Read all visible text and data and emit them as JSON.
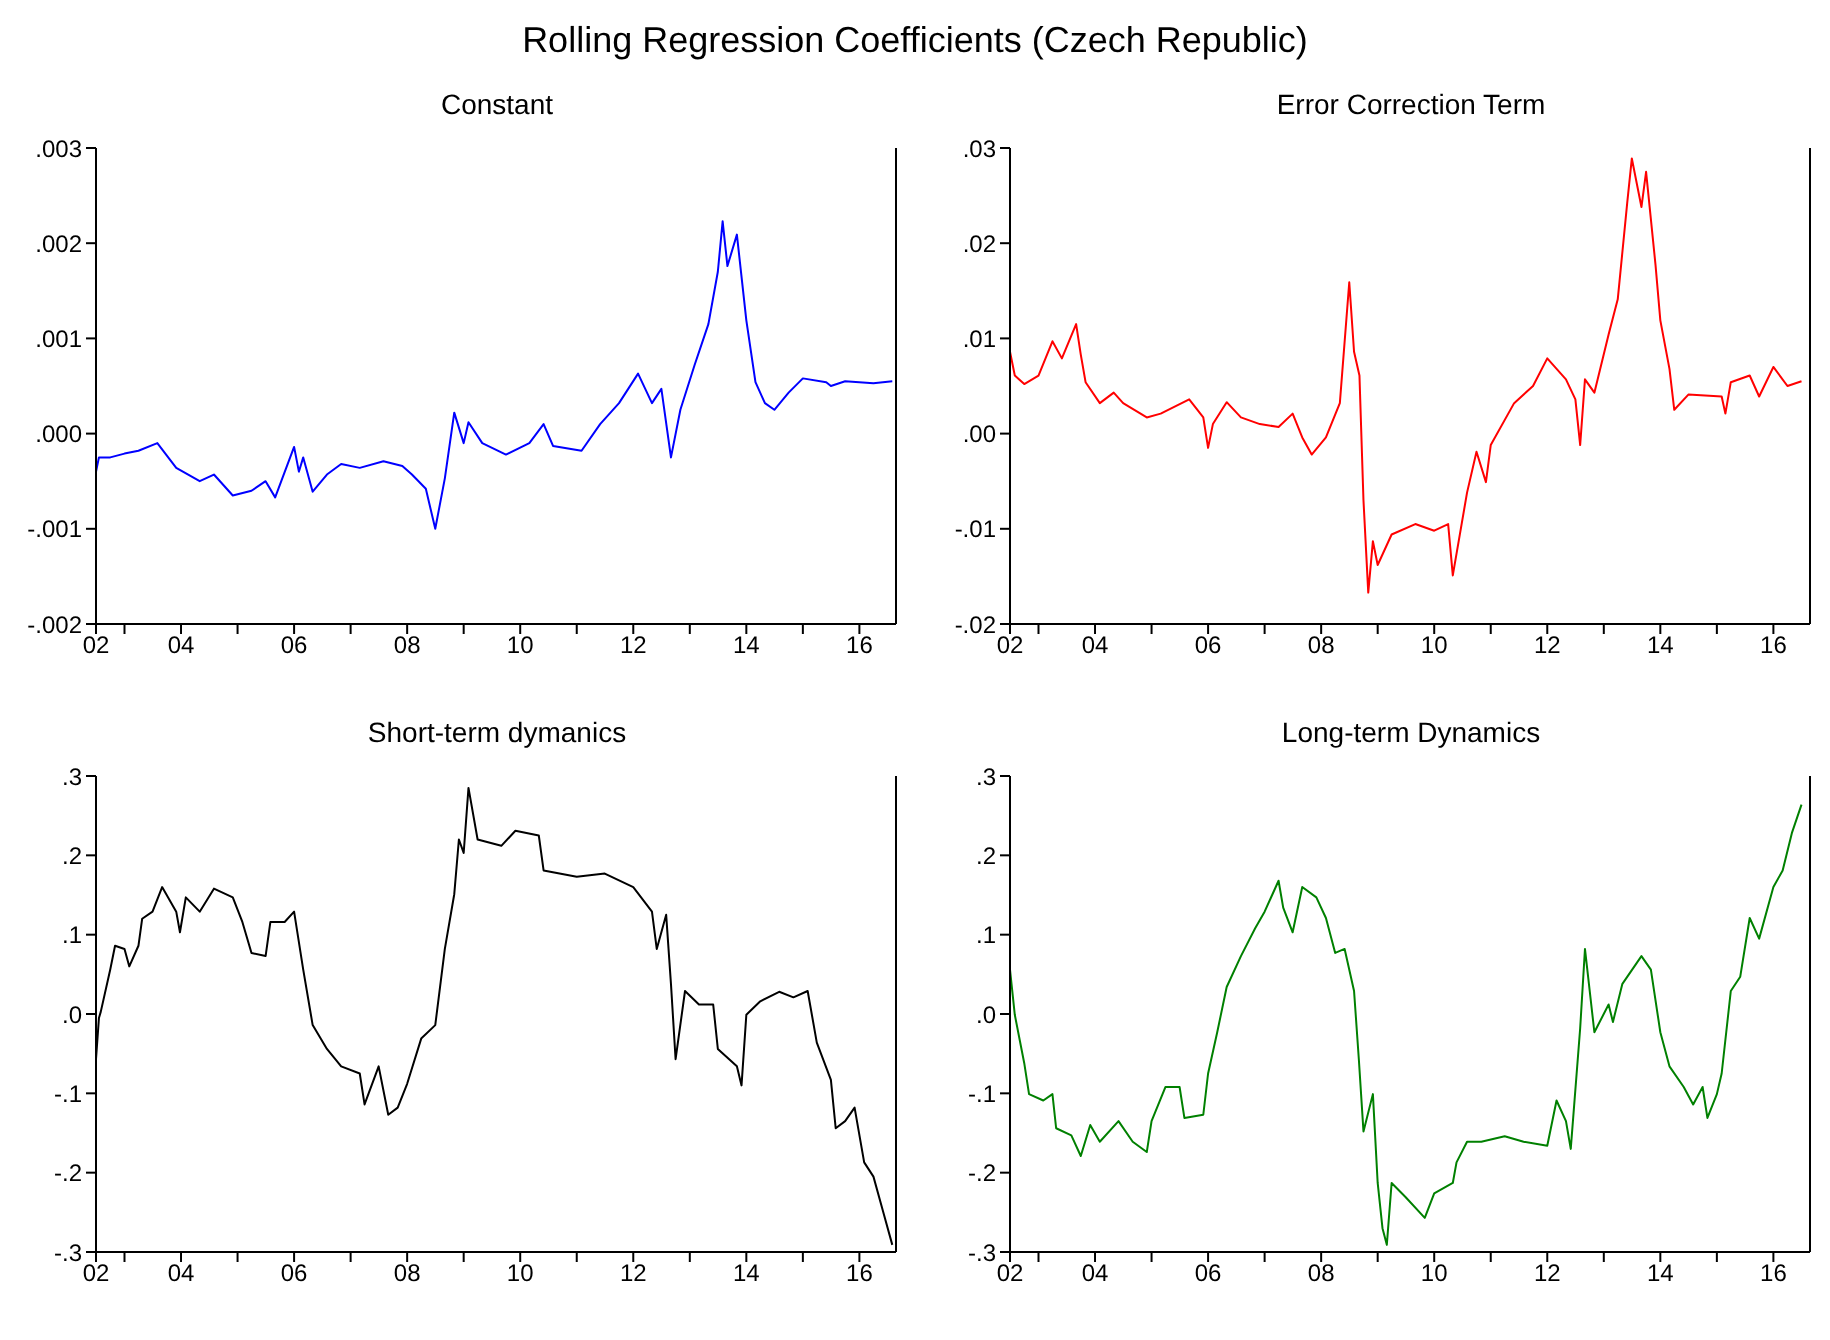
{
  "chart_data": [
    {
      "type": "line",
      "title": "Rolling Regression Coefficients (Czech Republic)",
      "subtitle": "Constant",
      "series": [
        {
          "color": "#0000ff",
          "x": [
            "2002-07-01",
            "2002-07-20",
            "2002-10",
            "2003-01",
            "2003-04",
            "2003-08",
            "2003-12",
            "2004-05",
            "2004-08",
            "2004-12",
            "2005-04",
            "2005-07",
            "2005-09",
            "2006-01",
            "2006-02",
            "2006-03",
            "2006-05",
            "2006-08",
            "2006-11",
            "2007-03",
            "2007-08",
            "2007-12",
            "2008-02",
            "2008-05",
            "2008-07",
            "2008-09",
            "2008-11",
            "2009-01",
            "2009-02",
            "2009-05",
            "2009-10",
            "2010-03",
            "2010-06",
            "2010-08",
            "2011-02",
            "2011-06",
            "2011-10",
            "2012-02",
            "2012-05",
            "2012-07",
            "2012-09",
            "2012-11",
            "2013-02",
            "2013-05",
            "2013-07",
            "2013-08",
            "2013-09",
            "2013-11",
            "2014-01",
            "2014-03",
            "2014-05",
            "2014-07",
            "2014-10",
            "2015-01",
            "2015-06",
            "2015-07",
            "2015-10",
            "2016-04",
            "2016-08"
          ],
          "values": [
            -0.0004,
            -0.00025,
            -0.00025,
            -0.00021,
            -0.00018,
            -0.0001,
            -0.00036,
            -0.0005,
            -0.00043,
            -0.00065,
            -0.0006,
            -0.0005,
            -0.00067,
            -0.00014,
            -0.0004,
            -0.00025,
            -0.00061,
            -0.00043,
            -0.00032,
            -0.00036,
            -0.00029,
            -0.00034,
            -0.00043,
            -0.00058,
            -0.001,
            -0.00047,
            0.00022,
            -0.0001,
            0.00012,
            -0.0001,
            -0.00022,
            -0.0001,
            0.0001,
            -0.00013,
            -0.00018,
            0.0001,
            0.00032,
            0.00063,
            0.00032,
            0.00047,
            -0.00025,
            0.00025,
            0.00072,
            0.00115,
            0.0017,
            0.00223,
            0.00176,
            0.00209,
            0.00119,
            0.00054,
            0.00032,
            0.00025,
            0.00043,
            0.00058,
            0.00054,
            0.0005,
            0.00055,
            0.00053,
            0.00055
          ]
        }
      ],
      "xlim": [
        "2002-07-01",
        "2016-08-25"
      ],
      "xticks": [
        {
          "value": "2002-07-01",
          "label": "02"
        },
        {
          "value": "2003",
          "label": null
        },
        {
          "value": "2004",
          "label": "04"
        },
        {
          "value": "2005",
          "label": null
        },
        {
          "value": "2006",
          "label": "06"
        },
        {
          "value": "2007",
          "label": null
        },
        {
          "value": "2008",
          "label": "08"
        },
        {
          "value": "2009",
          "label": null
        },
        {
          "value": "2010",
          "label": "10"
        },
        {
          "value": "2011",
          "label": null
        },
        {
          "value": "2012",
          "label": "12"
        },
        {
          "value": "2013",
          "label": null
        },
        {
          "value": "2014",
          "label": "14"
        },
        {
          "value": "2015",
          "label": null
        },
        {
          "value": "2016",
          "label": "16"
        }
      ],
      "ylim": [
        -0.002,
        0.003
      ],
      "yticks": [
        {
          "value": -0.002,
          "label": "-.002"
        },
        {
          "value": -0.001,
          "label": "-.001"
        },
        {
          "value": 0,
          "label": ".000"
        },
        {
          "value": 0.001,
          "label": ".001"
        },
        {
          "value": 0.002,
          "label": ".002"
        },
        {
          "value": 0.003,
          "label": ".003"
        }
      ]
    },
    {
      "type": "line",
      "subtitle": "Error Correction Term",
      "series": [
        {
          "color": "#ff0000",
          "x": [
            "2002-07",
            "2002-08",
            "2002-10",
            "2003-01",
            "2003-04",
            "2003-06",
            "2003-09",
            "2003-10",
            "2003-11",
            "2004-02",
            "2004-05",
            "2004-07",
            "2004-12",
            "2005-03",
            "2005-09",
            "2005-12",
            "2006-01",
            "2006-02",
            "2006-05",
            "2006-08",
            "2006-12",
            "2007-04",
            "2007-07",
            "2007-09",
            "2007-11",
            "2008-02",
            "2008-05",
            "2008-07",
            "2008-08",
            "2008-09-05",
            "2008-09-28",
            "2008-10",
            "2008-11",
            "2008-12",
            "2009-01",
            "2009-04",
            "2009-09",
            "2010-01",
            "2010-04",
            "2010-05",
            "2010-08",
            "2010-10",
            "2010-12",
            "2011-01",
            "2011-06",
            "2011-10",
            "2012-01",
            "2012-05",
            "2012-07",
            "2012-08",
            "2012-09",
            "2012-11",
            "2013-02",
            "2013-04",
            "2013-06",
            "2013-07",
            "2013-09",
            "2013-10",
            "2013-12",
            "2014-01",
            "2014-03",
            "2014-04",
            "2014-07",
            "2015-02-01",
            "2015-02-25",
            "2015-04",
            "2015-08",
            "2015-10",
            "2016-01",
            "2016-04",
            "2016-07"
          ],
          "values": [
            0.0086,
            0.0061,
            0.0052,
            0.0061,
            0.0097,
            0.0079,
            0.0115,
            0.0083,
            0.0054,
            0.0032,
            0.0043,
            0.0032,
            0.0017,
            0.0021,
            0.0036,
            0.0017,
            -0.0015,
            0.001,
            0.0033,
            0.0017,
            0.001,
            0.0007,
            0.0021,
            -0.0004,
            -0.0022,
            -0.0004,
            0.0032,
            0.0159,
            0.0086,
            0.0061,
            -0.0055,
            -0.007,
            -0.0167,
            -0.0113,
            -0.0138,
            -0.0106,
            -0.0095,
            -0.0102,
            -0.0095,
            -0.0149,
            -0.0062,
            -0.0019,
            -0.0051,
            -0.0012,
            0.0032,
            0.005,
            0.0079,
            0.0057,
            0.0036,
            -0.0012,
            0.0057,
            0.0043,
            0.0104,
            0.0141,
            0.0242,
            0.0289,
            0.0238,
            0.0275,
            0.0177,
            0.0119,
            0.0068,
            0.0025,
            0.0041,
            0.0039,
            0.0021,
            0.0054,
            0.0061,
            0.0039,
            0.007,
            0.005,
            0.0055
          ]
        }
      ],
      "xlim": [
        "2002-07-01",
        "2016-08-25"
      ],
      "xticks": [
        {
          "value": "2002-07-01",
          "label": "02"
        },
        {
          "value": "2003",
          "label": null
        },
        {
          "value": "2004",
          "label": "04"
        },
        {
          "value": "2005",
          "label": null
        },
        {
          "value": "2006",
          "label": "06"
        },
        {
          "value": "2007",
          "label": null
        },
        {
          "value": "2008",
          "label": "08"
        },
        {
          "value": "2009",
          "label": null
        },
        {
          "value": "2010",
          "label": "10"
        },
        {
          "value": "2011",
          "label": null
        },
        {
          "value": "2012",
          "label": "12"
        },
        {
          "value": "2013",
          "label": null
        },
        {
          "value": "2014",
          "label": "14"
        },
        {
          "value": "2015",
          "label": null
        },
        {
          "value": "2016",
          "label": "16"
        }
      ],
      "ylim": [
        -0.02,
        0.03
      ],
      "yticks": [
        {
          "value": -0.02,
          "label": "-.02"
        },
        {
          "value": -0.01,
          "label": "-.01"
        },
        {
          "value": 0,
          "label": ".00"
        },
        {
          "value": 0.01,
          "label": ".01"
        },
        {
          "value": 0.02,
          "label": ".02"
        },
        {
          "value": 0.03,
          "label": ".03"
        }
      ]
    },
    {
      "type": "line",
      "subtitle": "Short-term dymanics",
      "series": [
        {
          "color": "#000000",
          "x": [
            "2002-07-01",
            "2002-07-20",
            "2002-08",
            "2002-10",
            "2002-11",
            "2003-01",
            "2003-02",
            "2003-04-01",
            "2003-04-25",
            "2003-07",
            "2003-09",
            "2003-12-01",
            "2003-12-25",
            "2004-02",
            "2004-05",
            "2004-08",
            "2004-12",
            "2005-02",
            "2005-04",
            "2005-07",
            "2005-08",
            "2005-11",
            "2006-01",
            "2006-03",
            "2006-05",
            "2006-08",
            "2006-11",
            "2007-03",
            "2007-04",
            "2007-07",
            "2007-09",
            "2007-11",
            "2008-01",
            "2008-04",
            "2008-07",
            "2008-09",
            "2008-11",
            "2008-12",
            "2009-01",
            "2009-02",
            "2009-04",
            "2009-09",
            "2009-12",
            "2010-05",
            "2010-06",
            "2011-01",
            "2011-07",
            "2012-01",
            "2012-05",
            "2012-06",
            "2012-08",
            "2012-09",
            "2012-10",
            "2012-12",
            "2013-03",
            "2013-06",
            "2013-07",
            "2013-11",
            "2013-12",
            "2014-01",
            "2014-04",
            "2014-08",
            "2014-11",
            "2015-02",
            "2015-04",
            "2015-07",
            "2015-08",
            "2015-10",
            "2015-12",
            "2016-02",
            "2016-04",
            "2016-06",
            "2016-08"
          ],
          "values": [
            -0.057,
            -0.005,
            0.003,
            0.056,
            0.086,
            0.082,
            0.06,
            0.086,
            0.12,
            0.129,
            0.16,
            0.129,
            0.103,
            0.147,
            0.129,
            0.158,
            0.147,
            0.116,
            0.077,
            0.073,
            0.116,
            0.116,
            0.129,
            0.056,
            -0.014,
            -0.044,
            -0.066,
            -0.075,
            -0.114,
            -0.066,
            -0.127,
            -0.118,
            -0.088,
            -0.031,
            -0.014,
            0.082,
            0.151,
            0.22,
            0.203,
            0.285,
            0.22,
            0.212,
            0.231,
            0.225,
            0.181,
            0.173,
            0.177,
            0.16,
            0.129,
            0.082,
            0.125,
            0.038,
            -0.057,
            0.029,
            0.012,
            0.012,
            -0.044,
            -0.066,
            -0.09,
            -0.001,
            0.016,
            0.028,
            0.021,
            0.029,
            -0.036,
            -0.083,
            -0.144,
            -0.135,
            -0.118,
            -0.187,
            -0.205,
            -0.248,
            -0.291
          ]
        }
      ],
      "xlim": [
        "2002-07-01",
        "2016-08-25"
      ],
      "xticks": [
        {
          "value": "2002-07-01",
          "label": "02"
        },
        {
          "value": "2003",
          "label": null
        },
        {
          "value": "2004",
          "label": "04"
        },
        {
          "value": "2005",
          "label": null
        },
        {
          "value": "2006",
          "label": "06"
        },
        {
          "value": "2007",
          "label": null
        },
        {
          "value": "2008",
          "label": "08"
        },
        {
          "value": "2009",
          "label": null
        },
        {
          "value": "2010",
          "label": "10"
        },
        {
          "value": "2011",
          "label": null
        },
        {
          "value": "2012",
          "label": "12"
        },
        {
          "value": "2013",
          "label": null
        },
        {
          "value": "2014",
          "label": "14"
        },
        {
          "value": "2015",
          "label": null
        },
        {
          "value": "2016",
          "label": "16"
        }
      ],
      "ylim": [
        -0.3,
        0.3
      ],
      "yticks": [
        {
          "value": -0.3,
          "label": "-.3"
        },
        {
          "value": -0.2,
          "label": "-.2"
        },
        {
          "value": -0.1,
          "label": "-.1"
        },
        {
          "value": 0,
          "label": ".0"
        },
        {
          "value": 0.1,
          "label": ".1"
        },
        {
          "value": 0.2,
          "label": ".2"
        },
        {
          "value": 0.3,
          "label": ".3"
        }
      ]
    },
    {
      "type": "line",
      "subtitle": "Long-term Dynamics",
      "series": [
        {
          "color": "#008000",
          "x": [
            "2002-07",
            "2002-08",
            "2002-10",
            "2002-11",
            "2003-02",
            "2003-04-01",
            "2003-04-25",
            "2003-08",
            "2003-10",
            "2003-12",
            "2004-02",
            "2004-06",
            "2004-09",
            "2004-12",
            "2005-01",
            "2005-04",
            "2005-07",
            "2005-08",
            "2005-12",
            "2006-01",
            "2006-03",
            "2006-05",
            "2006-08",
            "2006-11",
            "2007-01",
            "2007-04",
            "2007-05",
            "2007-07",
            "2007-09",
            "2007-12",
            "2008-02",
            "2008-04",
            "2008-06",
            "2008-08",
            "2008-09",
            "2008-10",
            "2008-12",
            "2009-01",
            "2009-02",
            "2009-03",
            "2009-04",
            "2009-07",
            "2009-11",
            "2010-01",
            "2010-05-01",
            "2010-05-25",
            "2010-08",
            "2010-11",
            "2011-04",
            "2011-08",
            "2012-01",
            "2012-03",
            "2012-05",
            "2012-06",
            "2012-08",
            "2012-09",
            "2012-11",
            "2013-02",
            "2013-03",
            "2013-05",
            "2013-09",
            "2013-11",
            "2014-01",
            "2014-03",
            "2014-06",
            "2014-08",
            "2014-10",
            "2014-11",
            "2015-01",
            "2015-02",
            "2015-04",
            "2015-06",
            "2015-08",
            "2015-10",
            "2016-01",
            "2016-03",
            "2016-05",
            "2016-07"
          ],
          "values": [
            0.056,
            -0.001,
            -0.062,
            -0.101,
            -0.109,
            -0.101,
            -0.144,
            -0.153,
            -0.179,
            -0.14,
            -0.161,
            -0.135,
            -0.161,
            -0.174,
            -0.135,
            -0.092,
            -0.092,
            -0.131,
            -0.127,
            -0.075,
            -0.023,
            0.034,
            0.073,
            0.108,
            0.129,
            0.168,
            0.134,
            0.103,
            0.16,
            0.147,
            0.121,
            0.077,
            0.082,
            0.029,
            -0.057,
            -0.148,
            -0.101,
            -0.213,
            -0.27,
            -0.291,
            -0.213,
            -0.231,
            -0.257,
            -0.226,
            -0.213,
            -0.187,
            -0.161,
            -0.161,
            -0.154,
            -0.161,
            -0.166,
            -0.109,
            -0.135,
            -0.17,
            -0.018,
            0.082,
            -0.023,
            0.012,
            -0.01,
            0.038,
            0.073,
            0.056,
            -0.023,
            -0.066,
            -0.092,
            -0.114,
            -0.092,
            -0.131,
            -0.101,
            -0.075,
            0.029,
            0.047,
            0.121,
            0.095,
            0.16,
            0.181,
            0.229,
            0.264
          ]
        }
      ],
      "xlim": [
        "2002-07-01",
        "2016-08-25"
      ],
      "xticks": [
        {
          "value": "2002-07-01",
          "label": "02"
        },
        {
          "value": "2003",
          "label": null
        },
        {
          "value": "2004",
          "label": "04"
        },
        {
          "value": "2005",
          "label": null
        },
        {
          "value": "2006",
          "label": "06"
        },
        {
          "value": "2007",
          "label": null
        },
        {
          "value": "2008",
          "label": "08"
        },
        {
          "value": "2009",
          "label": null
        },
        {
          "value": "2010",
          "label": "10"
        },
        {
          "value": "2011",
          "label": null
        },
        {
          "value": "2012",
          "label": "12"
        },
        {
          "value": "2013",
          "label": null
        },
        {
          "value": "2014",
          "label": "14"
        },
        {
          "value": "2015",
          "label": null
        },
        {
          "value": "2016",
          "label": "16"
        }
      ],
      "ylim": [
        -0.3,
        0.3
      ],
      "yticks": [
        {
          "value": -0.3,
          "label": "-.3"
        },
        {
          "value": -0.2,
          "label": "-.2"
        },
        {
          "value": -0.1,
          "label": "-.1"
        },
        {
          "value": 0,
          "label": ".0"
        },
        {
          "value": 0.1,
          "label": ".1"
        },
        {
          "value": 0.2,
          "label": ".2"
        },
        {
          "value": 0.3,
          "label": ".3"
        }
      ]
    }
  ]
}
